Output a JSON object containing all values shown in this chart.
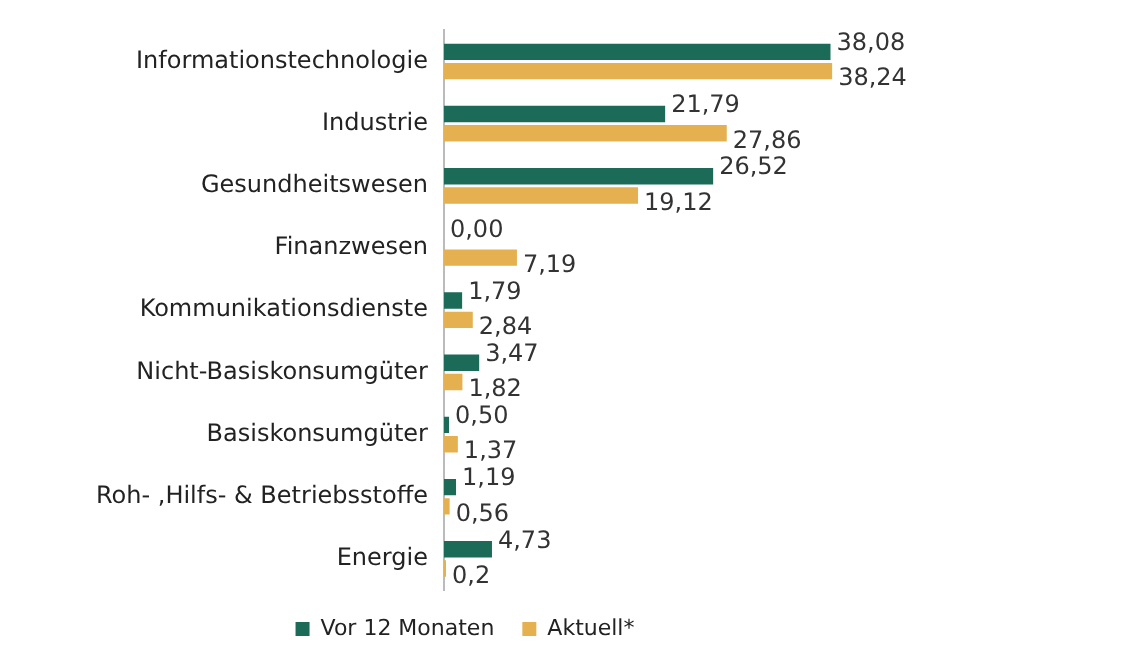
{
  "chart_data": {
    "type": "bar",
    "orientation": "horizontal",
    "categories": [
      "Informationstechnologie",
      "Industrie",
      "Gesundheitswesen",
      "Finanzwesen",
      "Kommunikationsdienste",
      "Nicht-Basiskonsumgüter",
      "Basiskonsumgüter",
      "Roh- ,Hilfs- & Betriebsstoffe",
      "Energie"
    ],
    "series": [
      {
        "name": "Vor 12 Monaten",
        "color": "#1b6b58",
        "values": [
          38.08,
          21.79,
          26.52,
          0,
          1.79,
          3.47,
          0.5,
          1.19,
          4.73
        ],
        "value_labels": [
          "38,08",
          "21,79",
          "26,52",
          "0,00",
          "1,79",
          "3,47",
          "0,50",
          "1,19",
          "4,73"
        ]
      },
      {
        "name": "Aktuell*",
        "color": "#e5b150",
        "values": [
          38.24,
          27.86,
          19.12,
          7.19,
          2.84,
          1.82,
          1.37,
          0.56,
          0.2
        ],
        "value_labels": [
          "38,24",
          "27,86",
          "19,12",
          "7,19",
          "2,84",
          "1,82",
          "1,37",
          "0,56",
          "0,2"
        ]
      }
    ],
    "tick_labels": "y",
    "grid": false,
    "legend": "bottom"
  }
}
